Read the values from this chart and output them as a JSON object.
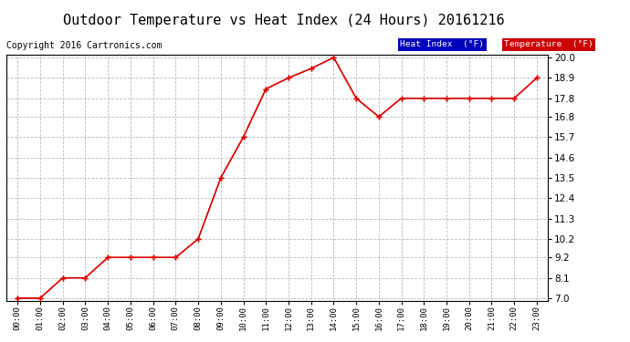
{
  "title": "Outdoor Temperature vs Heat Index (24 Hours) 20161216",
  "copyright": "Copyright 2016 Cartronics.com",
  "x_labels": [
    "00:00",
    "01:00",
    "02:00",
    "03:00",
    "04:00",
    "05:00",
    "06:00",
    "07:00",
    "08:00",
    "09:00",
    "10:00",
    "11:00",
    "12:00",
    "13:00",
    "14:00",
    "15:00",
    "16:00",
    "17:00",
    "18:00",
    "19:00",
    "20:00",
    "21:00",
    "22:00",
    "23:00"
  ],
  "temperature": [
    7.0,
    7.0,
    8.1,
    8.1,
    9.2,
    9.2,
    9.2,
    9.2,
    10.2,
    13.5,
    15.7,
    18.3,
    18.9,
    19.4,
    20.0,
    17.8,
    16.8,
    17.8,
    17.8,
    17.8,
    17.8,
    17.8,
    17.8,
    18.9
  ],
  "heat_index": [
    7.0,
    7.0,
    8.1,
    8.1,
    9.2,
    9.2,
    9.2,
    9.2,
    10.2,
    13.5,
    15.7,
    18.3,
    18.9,
    19.4,
    20.0,
    17.8,
    16.8,
    17.8,
    17.8,
    17.8,
    17.8,
    17.8,
    17.8,
    18.9
  ],
  "y_ticks": [
    7.0,
    8.1,
    9.2,
    10.2,
    11.3,
    12.4,
    13.5,
    14.6,
    15.7,
    16.8,
    17.8,
    18.9,
    20.0
  ],
  "ylim": [
    6.85,
    20.15
  ],
  "temp_color": "#dd0000",
  "heat_index_color": "#dd0000",
  "background_color": "#ffffff",
  "grid_color": "#bbbbbb",
  "title_fontsize": 11,
  "copyright_fontsize": 7,
  "legend_heat_bg": "#0000bb",
  "legend_temp_bg": "#cc0000",
  "legend_heat_label": "Heat Index  (°F)",
  "legend_temp_label": "Temperature  (°F)"
}
